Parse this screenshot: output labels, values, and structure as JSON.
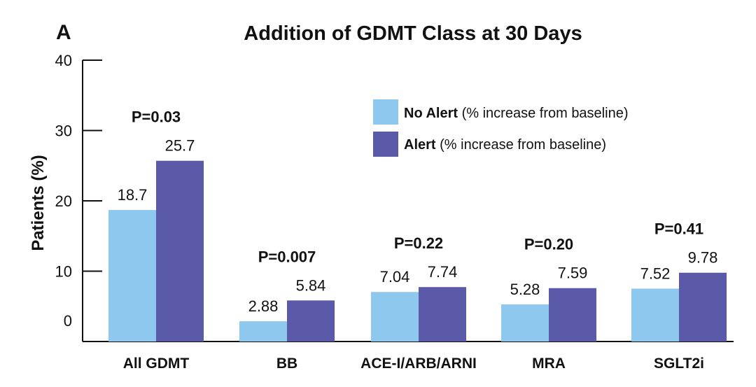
{
  "panel_label": "A",
  "chart_data": {
    "type": "bar",
    "title": "Addition of GDMT Class at 30 Days",
    "xlabel": "",
    "ylabel": "Patients (%)",
    "ylim": [
      0,
      40
    ],
    "yticks": [
      "0",
      "10",
      "20",
      "30",
      "40"
    ],
    "categories": [
      "All GDMT",
      "BB",
      "ACE-I/ARB/ARNI",
      "MRA",
      "SGLT2i"
    ],
    "p_values": [
      "P=0.03",
      "P=0.007",
      "P=0.22",
      "P=0.20",
      "P=0.41"
    ],
    "series": [
      {
        "name": "No Alert",
        "legend_suffix": " (% increase from baseline)",
        "color": "#8ec8ee",
        "values": [
          18.7,
          2.88,
          7.04,
          5.28,
          7.52
        ],
        "labels": [
          "18.7",
          "2.88",
          "7.04",
          "5.28",
          "7.52"
        ]
      },
      {
        "name": "Alert",
        "legend_suffix": " (% increase from baseline)",
        "color": "#5b5aa8",
        "values": [
          25.7,
          5.84,
          7.74,
          7.59,
          9.78
        ],
        "labels": [
          "25.7",
          "5.84",
          "7.74",
          "7.59",
          "9.78"
        ]
      }
    ],
    "legend_position": "top-right",
    "grid": false
  }
}
